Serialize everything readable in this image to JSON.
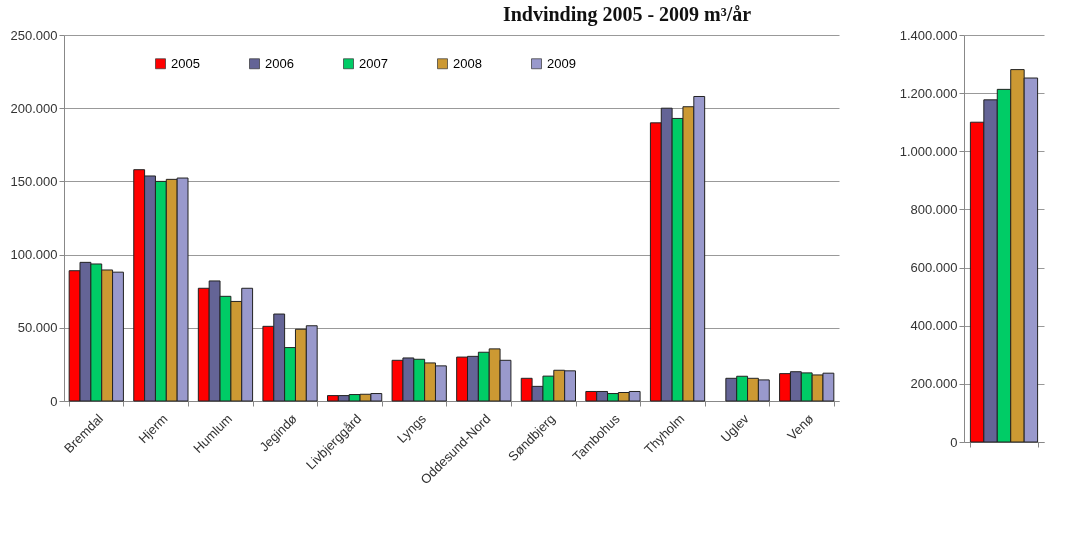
{
  "chart_data": [
    {
      "type": "bar",
      "title": "Indvinding 2005 - 2009  m³/år",
      "categories": [
        "Bremdal",
        "Hjerm",
        "Humlum",
        "Jegindø",
        "Livbjerggård",
        "Lyngs",
        "Oddesund-Nord",
        "Søndbjerg",
        "Tambohus",
        "Thyholm",
        "Uglev",
        "Venø"
      ],
      "series": [
        {
          "name": "2005",
          "color": "#ff0000",
          "values": [
            89000,
            158000,
            77000,
            51000,
            3700,
            27800,
            30000,
            15500,
            6500,
            190000,
            null,
            18700
          ]
        },
        {
          "name": "2006",
          "color": "#646496",
          "values": [
            94700,
            153700,
            82000,
            59400,
            3700,
            29400,
            30500,
            10000,
            6500,
            200000,
            15500,
            20000
          ]
        },
        {
          "name": "2007",
          "color": "#00cc66",
          "values": [
            93600,
            150000,
            71500,
            36500,
            4400,
            28500,
            33300,
            17000,
            5100,
            193000,
            16900,
            19200
          ]
        },
        {
          "name": "2008",
          "color": "#cc9933",
          "values": [
            89500,
            151400,
            68000,
            49000,
            4600,
            26000,
            35600,
            21000,
            5800,
            201000,
            15500,
            17800
          ]
        },
        {
          "name": "2009",
          "color": "#9999cc",
          "values": [
            88000,
            152300,
            77000,
            51400,
            5100,
            24000,
            27800,
            20600,
            6500,
            208000,
            14400,
            19000
          ]
        }
      ],
      "ylim": [
        0,
        250000
      ],
      "yticks": [
        {
          "value": 0,
          "label": "0"
        },
        {
          "value": 50000,
          "label": "50.000"
        },
        {
          "value": 100000,
          "label": "100.000"
        },
        {
          "value": 150000,
          "label": "150.000"
        },
        {
          "value": 200000,
          "label": "200.000"
        },
        {
          "value": 250000,
          "label": "250.000"
        }
      ],
      "grid": "y",
      "legend": "top"
    },
    {
      "type": "bar",
      "categories": [
        null
      ],
      "series": [
        {
          "color": "#ff0000",
          "values": [
            1100000
          ]
        },
        {
          "color": "#646496",
          "values": [
            1177000
          ]
        },
        {
          "color": "#00cc66",
          "values": [
            1213000
          ]
        },
        {
          "color": "#cc9933",
          "values": [
            1281000
          ]
        },
        {
          "color": "#9999cc",
          "values": [
            1252000
          ]
        }
      ],
      "ylim": [
        0,
        1400000
      ],
      "yticks": [
        {
          "value": 0,
          "label": "0"
        },
        {
          "value": 200000,
          "label": "200.000"
        },
        {
          "value": 400000,
          "label": "400.000"
        },
        {
          "value": 600000,
          "label": "600.000"
        },
        {
          "value": 800000,
          "label": "800.000"
        },
        {
          "value": 1000000,
          "label": "1.000.000"
        },
        {
          "value": 1200000,
          "label": "1.200.000"
        },
        {
          "value": 1400000,
          "label": "1.400.000"
        }
      ],
      "grid": "y",
      "legend": false
    }
  ]
}
